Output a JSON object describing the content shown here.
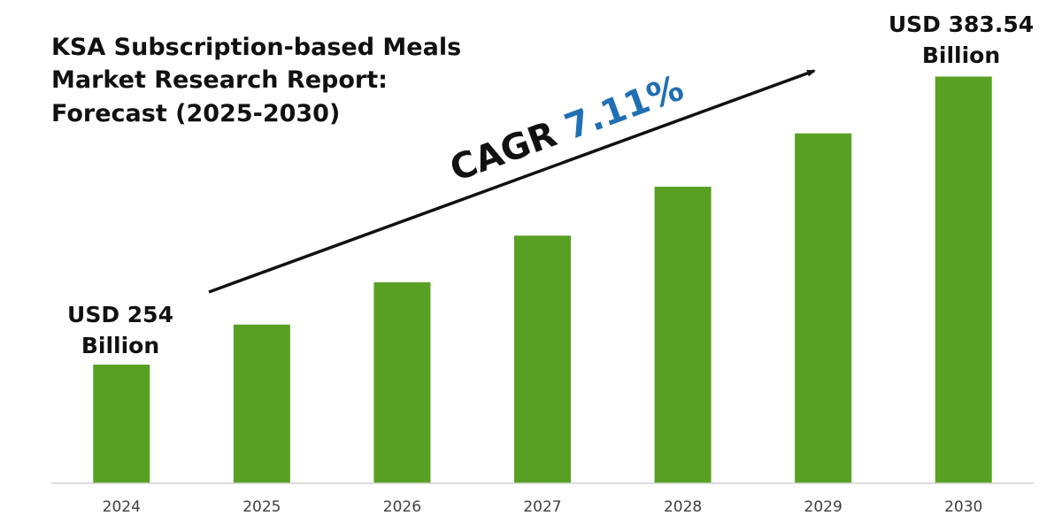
{
  "colors": {
    "bar": "#58a023",
    "baseline": "#d0d0d0",
    "arrow": "#111111",
    "cagr_value": "#1f6fb2"
  },
  "chart_data": {
    "type": "bar",
    "title": [
      "KSA Subscription-based Meals",
      "Market Research Report:",
      "Forecast (2025-2030)"
    ],
    "categories": [
      "2024",
      "2025",
      "2026",
      "2027",
      "2028",
      "2029",
      "2030"
    ],
    "values": [
      254,
      272,
      291,
      312,
      334,
      358,
      383.54
    ],
    "ylim": [
      150,
      400
    ],
    "grid": false,
    "xlabel": "",
    "ylabel": "",
    "annotations": {
      "first_bar": [
        "USD 254",
        "Billion"
      ],
      "last_bar": [
        "USD 383.54",
        "Billion"
      ],
      "cagr_prefix": "CAGR ",
      "cagr_value": "7.11%"
    }
  }
}
